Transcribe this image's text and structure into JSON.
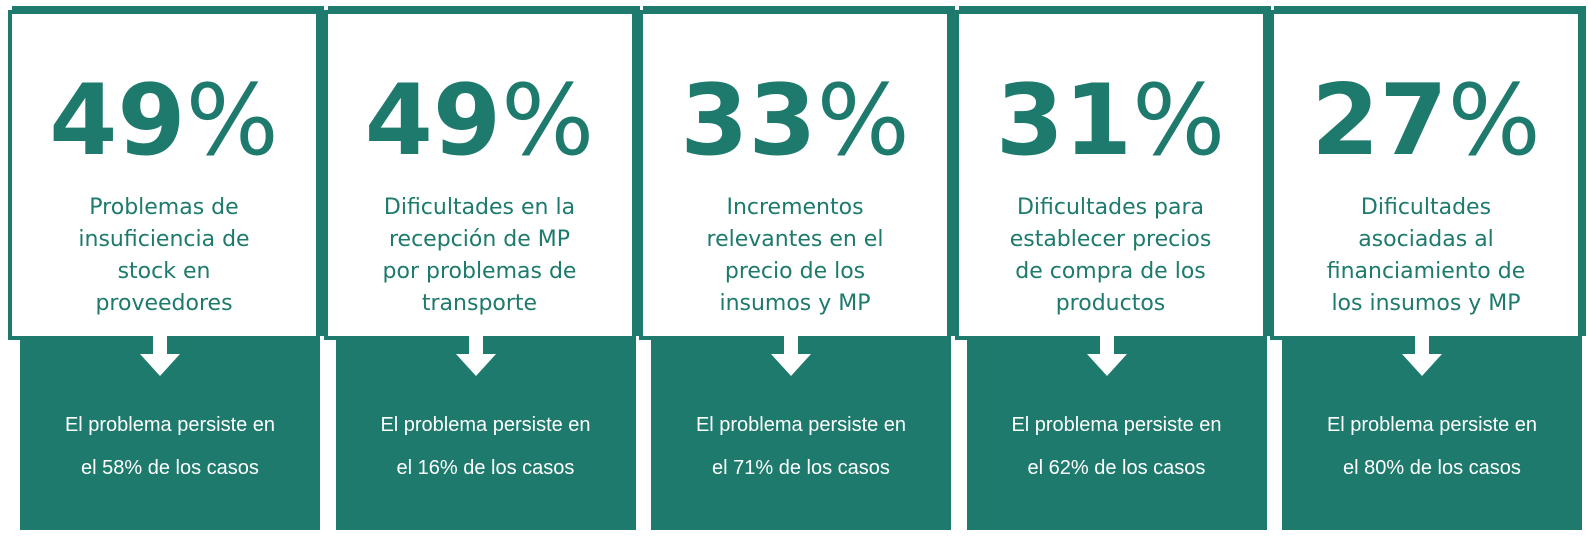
{
  "cards": [
    {
      "number": "49",
      "unit": "%",
      "description": [
        "Problemas de",
        "insuficiencia de",
        "stock en",
        "proveedores"
      ],
      "footer": [
        "El problema persiste en",
        "el 58% de los casos"
      ]
    },
    {
      "number": "49",
      "unit": "%",
      "description": [
        "Dificultades en la",
        "recepción de MP",
        "por problemas de",
        "transporte"
      ],
      "footer": [
        "El problema persiste en",
        "el 16% de los casos"
      ]
    },
    {
      "number": "33",
      "unit": "%",
      "description": [
        "Incrementos",
        "relevantes en el",
        "precio de los",
        "insumos y MP"
      ],
      "footer": [
        "El problema persiste en",
        "el 71% de los casos"
      ]
    },
    {
      "number": "31",
      "unit": "%",
      "description": [
        "Dificultades para",
        "establecer precios",
        "de compra de los",
        "productos"
      ],
      "footer": [
        "El problema persiste en",
        "el 62% de los casos"
      ]
    },
    {
      "number": "27",
      "unit": "%",
      "description": [
        "Dificultades",
        "asociadas al",
        "financiamiento de",
        "los insumos y MP"
      ],
      "footer": [
        "El problema persiste en",
        "el 80% de los casos"
      ]
    }
  ]
}
